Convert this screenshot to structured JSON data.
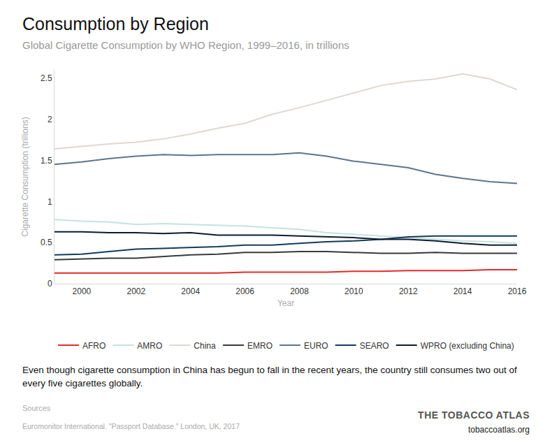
{
  "chart_data": {
    "type": "line",
    "title": "Consumption by Region",
    "subtitle": "Global Cigarette Consumption by WHO Region, 1999–2016, in trillions",
    "x_label": "Year",
    "y_label": "Cigarette Consumption (trillions)",
    "caption": "Even though cigarette consumption in China has begun to fall in the recent years, the country still consumes two out of every five cigarettes globally.",
    "source_label": "Sources",
    "source": "Euromonitor International. \"Passport Database.\" London, UK, 2017",
    "brand": "THE TOBACCO ATLAS",
    "url": "tobaccoatlas.org",
    "x": [
      1999,
      2000,
      2001,
      2002,
      2003,
      2004,
      2005,
      2006,
      2007,
      2008,
      2009,
      2010,
      2011,
      2012,
      2013,
      2014,
      2015,
      2016
    ],
    "xlim": [
      1999,
      2016
    ],
    "xticks": [
      2000,
      2002,
      2004,
      2006,
      2008,
      2010,
      2012,
      2014,
      2016
    ],
    "ylim": [
      0,
      2.6
    ],
    "yticks": [
      0,
      0.5,
      1,
      1.5,
      2,
      2.5
    ],
    "grid": false,
    "legend": "bottom",
    "series": [
      {
        "name": "AFRO",
        "color": "#e8282b",
        "values": [
          0.13,
          0.13,
          0.13,
          0.13,
          0.13,
          0.13,
          0.13,
          0.14,
          0.14,
          0.14,
          0.14,
          0.15,
          0.15,
          0.16,
          0.16,
          0.16,
          0.17,
          0.17
        ]
      },
      {
        "name": "AMRO",
        "color": "#c4e3de",
        "values": [
          0.78,
          0.76,
          0.75,
          0.72,
          0.73,
          0.72,
          0.71,
          0.7,
          0.68,
          0.66,
          0.62,
          0.6,
          0.58,
          0.56,
          0.54,
          0.52,
          0.51,
          0.49
        ]
      },
      {
        "name": "China",
        "color": "#e0d8cf",
        "values": [
          1.64,
          1.67,
          1.7,
          1.72,
          1.76,
          1.82,
          1.89,
          1.95,
          2.06,
          2.14,
          2.23,
          2.32,
          2.41,
          2.46,
          2.49,
          2.55,
          2.49,
          2.36
        ]
      },
      {
        "name": "EMRO",
        "color": "#3a3a3a",
        "values": [
          0.29,
          0.3,
          0.31,
          0.31,
          0.33,
          0.35,
          0.36,
          0.38,
          0.38,
          0.39,
          0.39,
          0.38,
          0.37,
          0.37,
          0.38,
          0.37,
          0.37,
          0.37
        ]
      },
      {
        "name": "EURO",
        "color": "#5f7390",
        "values": [
          1.45,
          1.48,
          1.52,
          1.55,
          1.57,
          1.56,
          1.57,
          1.57,
          1.57,
          1.59,
          1.55,
          1.49,
          1.45,
          1.41,
          1.33,
          1.28,
          1.24,
          1.22
        ]
      },
      {
        "name": "SEARO",
        "color": "#143c5a",
        "values": [
          0.35,
          0.36,
          0.39,
          0.42,
          0.43,
          0.44,
          0.45,
          0.47,
          0.47,
          0.49,
          0.51,
          0.52,
          0.54,
          0.57,
          0.58,
          0.58,
          0.58,
          0.58
        ]
      },
      {
        "name": "WPRO (excluding China)",
        "color": "#0c1c33",
        "values": [
          0.63,
          0.63,
          0.62,
          0.62,
          0.61,
          0.62,
          0.59,
          0.59,
          0.59,
          0.58,
          0.57,
          0.56,
          0.54,
          0.54,
          0.52,
          0.49,
          0.47,
          0.47
        ]
      }
    ]
  }
}
